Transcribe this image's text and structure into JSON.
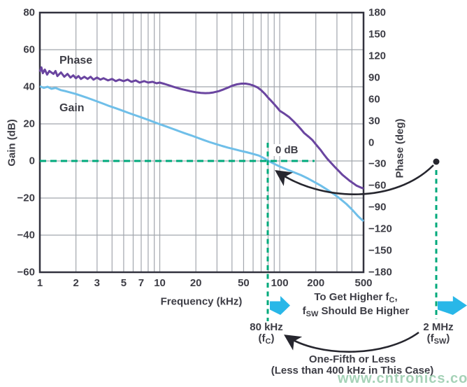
{
  "colors": {
    "gain_curve": "#6fbfe9",
    "phase_curve": "#6a45a0",
    "dashed_guide": "#00a97b",
    "block_arrow": "#29b7e8",
    "grid": "#a2a6ad",
    "axis_frame": "#32323e",
    "annotation_black": "#26262e",
    "text": "#3d3d45",
    "watermark": "#96cbab"
  },
  "legend": {
    "phase": "Phase",
    "gain": "Gain"
  },
  "axes": {
    "x_title": "Frequency (kHz)",
    "y_left_title": "Gain (dB)",
    "y_right_title": "Phase (deg)",
    "x_tick_labels": [
      "1",
      "2",
      "3",
      "5",
      "7",
      "10",
      "20",
      "50",
      "100",
      "200",
      "500"
    ],
    "x_tick_values": [
      1,
      2,
      3,
      5,
      7,
      10,
      20,
      50,
      100,
      200,
      500
    ],
    "gain_tick_labels": [
      "80",
      "60",
      "40",
      "20",
      "0",
      "−20",
      "−40",
      "−60"
    ],
    "gain_tick_values": [
      80,
      60,
      40,
      20,
      0,
      -20,
      -40,
      -60
    ],
    "phase_tick_labels": [
      "180",
      "150",
      "120",
      "90",
      "60",
      "30",
      "0",
      "−30",
      "−60",
      "−90",
      "−120",
      "−150",
      "−180"
    ],
    "phase_tick_values": [
      180,
      150,
      120,
      90,
      60,
      30,
      0,
      -30,
      -60,
      -90,
      -120,
      -150,
      -180
    ]
  },
  "annotations": {
    "zero_db": "0 dB",
    "crossover": {
      "freq_khz": 80,
      "gain_db": 0
    },
    "fc": {
      "value": "80 kHz",
      "paren_pre": "(f",
      "paren_sub": "C",
      "paren_post": ")"
    },
    "fsw": {
      "value": "2 MHz",
      "paren_pre": "(f",
      "paren_sub": "SW",
      "paren_post": ")"
    },
    "note_line1": {
      "pre": "To Get Higher f",
      "sub": "C",
      "post": ","
    },
    "note_line2": {
      "pre": "f",
      "sub": "SW",
      "post": " Should Be Higher"
    },
    "one_fifth_line1": "One-Fifth or Less",
    "one_fifth_line2": "(Less than 400 kHz in This Case)",
    "watermark": "www.cntronics.com"
  },
  "chart_data": {
    "type": "line",
    "title": "",
    "x_axis": {
      "label": "Frequency (kHz)",
      "scale": "log",
      "min": 1,
      "max": 500,
      "ticks": [
        1,
        2,
        3,
        5,
        7,
        10,
        20,
        50,
        100,
        200,
        500
      ]
    },
    "y_left": {
      "label": "Gain (dB)",
      "min": -60,
      "max": 80,
      "ticks": [
        80,
        60,
        40,
        20,
        0,
        -20,
        -40,
        -60
      ]
    },
    "y_right": {
      "label": "Phase (deg)",
      "min": -180,
      "max": 180,
      "ticks": [
        180,
        150,
        120,
        90,
        60,
        30,
        0,
        -30,
        -60,
        -90,
        -120,
        -150,
        -180
      ]
    },
    "grid": {
      "vertical_freqs": [
        2,
        3,
        4,
        5,
        6,
        7,
        8,
        9,
        10,
        20,
        30,
        40,
        50,
        60,
        70,
        80,
        90,
        100,
        200,
        300,
        400
      ],
      "horizontal_gains": [
        60,
        40,
        20,
        0,
        -20,
        -40
      ]
    },
    "legend_position": "inside-top-left",
    "series": [
      {
        "name": "Gain",
        "axis": "left",
        "units": "dB",
        "color": "#6fbfe9",
        "points": [
          [
            1,
            40.3
          ],
          [
            1.08,
            39.4
          ],
          [
            1.16,
            40.0
          ],
          [
            1.25,
            38.9
          ],
          [
            1.35,
            39.4
          ],
          [
            1.5,
            38.2
          ],
          [
            1.65,
            37.6
          ],
          [
            1.8,
            36.9
          ],
          [
            2,
            36.1
          ],
          [
            2.2,
            35.2
          ],
          [
            2.45,
            34.2
          ],
          [
            2.7,
            33.2
          ],
          [
            3,
            32.1
          ],
          [
            3.4,
            30.8
          ],
          [
            3.8,
            29.6
          ],
          [
            4.3,
            28.4
          ],
          [
            4.9,
            27.1
          ],
          [
            5.5,
            25.9
          ],
          [
            6.2,
            24.7
          ],
          [
            7,
            23.5
          ],
          [
            7.9,
            22.3
          ],
          [
            8.9,
            21.0
          ],
          [
            10,
            19.8
          ],
          [
            11.3,
            18.6
          ],
          [
            12.7,
            17.4
          ],
          [
            14.3,
            16.2
          ],
          [
            16.1,
            15.0
          ],
          [
            18.2,
            13.8
          ],
          [
            20.5,
            12.6
          ],
          [
            23,
            11.4
          ],
          [
            26,
            10.2
          ],
          [
            29.5,
            9.1
          ],
          [
            33,
            8.1
          ],
          [
            37,
            7.2
          ],
          [
            42,
            6.3
          ],
          [
            47,
            5.5
          ],
          [
            53,
            4.7
          ],
          [
            60,
            3.8
          ],
          [
            67,
            2.9
          ],
          [
            75,
            1.3
          ],
          [
            80,
            0.2
          ],
          [
            86,
            -0.9
          ],
          [
            93,
            -2.0
          ],
          [
            100,
            -3.0
          ],
          [
            115,
            -4.6
          ],
          [
            130,
            -6.0
          ],
          [
            150,
            -7.6
          ],
          [
            170,
            -9.3
          ],
          [
            195,
            -11.4
          ],
          [
            220,
            -13.3
          ],
          [
            250,
            -15.6
          ],
          [
            285,
            -18.0
          ],
          [
            320,
            -20.5
          ],
          [
            360,
            -23.2
          ],
          [
            405,
            -26.5
          ],
          [
            450,
            -29.8
          ],
          [
            500,
            -32.5
          ]
        ]
      },
      {
        "name": "Phase",
        "axis": "right",
        "units": "deg",
        "color": "#6a45a0",
        "points": [
          [
            1,
            98
          ],
          [
            1.03,
            104
          ],
          [
            1.06,
            96
          ],
          [
            1.1,
            101
          ],
          [
            1.15,
            94
          ],
          [
            1.2,
            99
          ],
          [
            1.3,
            95
          ],
          [
            1.35,
            99
          ],
          [
            1.4,
            92
          ],
          [
            1.5,
            97
          ],
          [
            1.6,
            91
          ],
          [
            1.7,
            95
          ],
          [
            1.8,
            90
          ],
          [
            1.9,
            93
          ],
          [
            2,
            89
          ],
          [
            2.1,
            92
          ],
          [
            2.2,
            88
          ],
          [
            2.35,
            91
          ],
          [
            2.5,
            88
          ],
          [
            2.65,
            91
          ],
          [
            2.8,
            87
          ],
          [
            3,
            90
          ],
          [
            3.2,
            87
          ],
          [
            3.4,
            89
          ],
          [
            3.7,
            86
          ],
          [
            4,
            88
          ],
          [
            4.3,
            85
          ],
          [
            4.6,
            87
          ],
          [
            5,
            85
          ],
          [
            5.4,
            87
          ],
          [
            5.8,
            84
          ],
          [
            6.3,
            86
          ],
          [
            6.8,
            83
          ],
          [
            7.4,
            85
          ],
          [
            8,
            83
          ],
          [
            8.7,
            84
          ],
          [
            9.4,
            82
          ],
          [
            10,
            83
          ],
          [
            11,
            81
          ],
          [
            12,
            79
          ],
          [
            13,
            77
          ],
          [
            14,
            75.5
          ],
          [
            15,
            74
          ],
          [
            16.5,
            72.5
          ],
          [
            18,
            71
          ],
          [
            20,
            69.5
          ],
          [
            22,
            68.7
          ],
          [
            24,
            68.3
          ],
          [
            26,
            68.5
          ],
          [
            28,
            69.3
          ],
          [
            31,
            71
          ],
          [
            34,
            73.5
          ],
          [
            37,
            76
          ],
          [
            40,
            78.5
          ],
          [
            44,
            80.5
          ],
          [
            48,
            81.5
          ],
          [
            52,
            81.5
          ],
          [
            56,
            80.5
          ],
          [
            60,
            79
          ],
          [
            65,
            76.5
          ],
          [
            70,
            72.5
          ],
          [
            75,
            67.5
          ],
          [
            80,
            62
          ],
          [
            85,
            57.5
          ],
          [
            90,
            53
          ],
          [
            95,
            48.5
          ],
          [
            100,
            44
          ],
          [
            110,
            39.5
          ],
          [
            120,
            35
          ],
          [
            130,
            29.5
          ],
          [
            140,
            24
          ],
          [
            150,
            18.5
          ],
          [
            160,
            13
          ],
          [
            174,
            8
          ],
          [
            188,
            3
          ],
          [
            202,
            -3.5
          ],
          [
            218,
            -10
          ],
          [
            233,
            -16.5
          ],
          [
            250,
            -23
          ],
          [
            270,
            -29
          ],
          [
            292,
            -35
          ],
          [
            312,
            -40
          ],
          [
            334,
            -45
          ],
          [
            357,
            -49
          ],
          [
            382,
            -53
          ],
          [
            409,
            -56.5
          ],
          [
            437,
            -60
          ],
          [
            467,
            -62
          ],
          [
            500,
            -64
          ]
        ]
      }
    ],
    "annotations": [
      {
        "type": "hline",
        "value_db": 0,
        "style": "green-dashed"
      },
      {
        "type": "vline",
        "freq_khz": 80,
        "style": "green-dashed",
        "label": "80 kHz (fC)"
      },
      {
        "type": "vline-offscale",
        "freq": "2 MHz",
        "style": "green-dashed",
        "label": "2 MHz (fSW)",
        "marker": "black-dot"
      },
      {
        "type": "text",
        "text": "0 dB",
        "at": "crossover"
      },
      {
        "type": "curved-arrow",
        "from": "fSW dot",
        "to": "crossover"
      },
      {
        "type": "curved-arrow",
        "from": "2 MHz label",
        "to": "80 kHz label",
        "text": "One-Fifth or Less (Less than 400 kHz in This Case)"
      }
    ]
  }
}
